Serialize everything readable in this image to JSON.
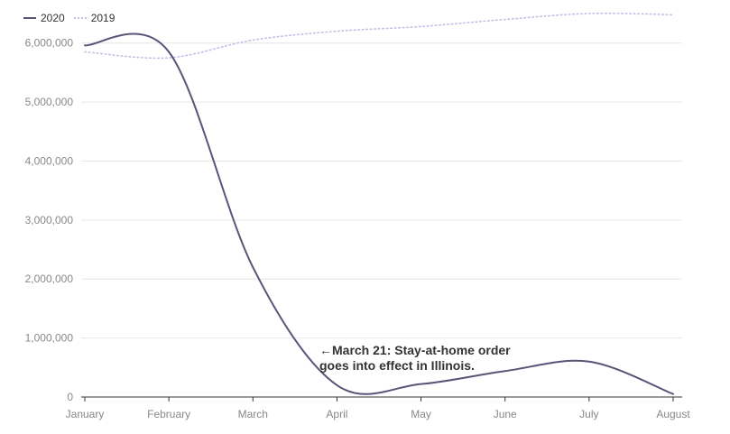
{
  "chart_data": {
    "type": "line",
    "title": "",
    "xlabel": "",
    "ylabel": "",
    "categories": [
      "January",
      "February",
      "March",
      "April",
      "May",
      "June",
      "July",
      "August"
    ],
    "y_ticks": [
      "0",
      "1,000,000",
      "2,000,000",
      "3,000,000",
      "4,000,000",
      "5,000,000",
      "6,000,000"
    ],
    "ylim": [
      0,
      6500000
    ],
    "grid": true,
    "legend": "top-left",
    "series": [
      {
        "name": "2020",
        "color": "#5a5478",
        "style": "solid",
        "values": [
          5960000,
          5850000,
          2200000,
          200000,
          220000,
          440000,
          600000,
          50000
        ]
      },
      {
        "name": "2019",
        "color": "#c4bde6",
        "style": "dotted",
        "values": [
          5850000,
          5750000,
          6050000,
          6200000,
          6280000,
          6400000,
          6500000,
          6480000
        ]
      }
    ],
    "annotation": {
      "line1": "←March 21: Stay-at-home order",
      "line2": "goes into effect in Illinois."
    }
  }
}
